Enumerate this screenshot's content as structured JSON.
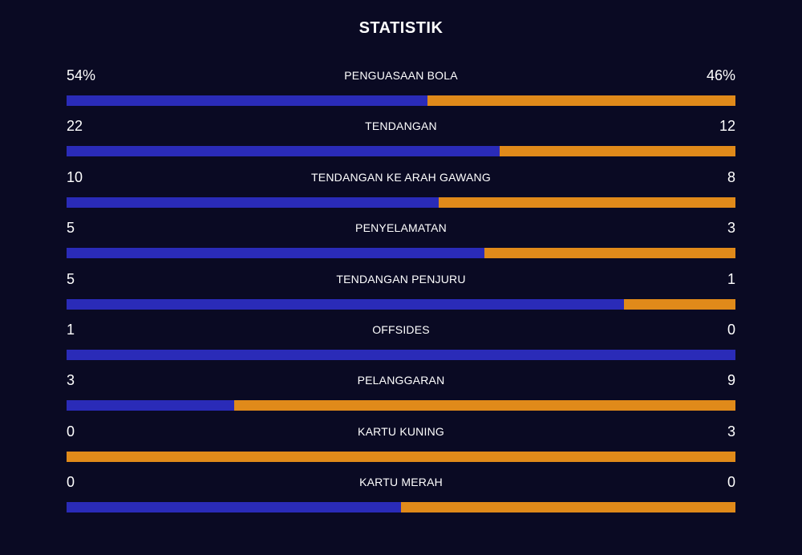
{
  "title": "STATISTIK",
  "colors": {
    "background": "#0a0a23",
    "home": "#2a2bb8",
    "away": "#e08a1a"
  },
  "stats": [
    {
      "label": "PENGUASAAN BOLA",
      "home": "54%",
      "away": "46%",
      "home_share": 0.54
    },
    {
      "label": "TENDANGAN",
      "home": "22",
      "away": "12",
      "home_share": 0.647
    },
    {
      "label": "TENDANGAN KE ARAH GAWANG",
      "home": "10",
      "away": "8",
      "home_share": 0.556
    },
    {
      "label": "PENYELAMATAN",
      "home": "5",
      "away": "3",
      "home_share": 0.625
    },
    {
      "label": "TENDANGAN PENJURU",
      "home": "5",
      "away": "1",
      "home_share": 0.833
    },
    {
      "label": "OFFSIDES",
      "home": "1",
      "away": "0",
      "home_share": 1.0
    },
    {
      "label": "PELANGGARAN",
      "home": "3",
      "away": "9",
      "home_share": 0.25
    },
    {
      "label": "KARTU KUNING",
      "home": "0",
      "away": "3",
      "home_share": 0.0
    },
    {
      "label": "KARTU MERAH",
      "home": "0",
      "away": "0",
      "home_share": 0.5
    }
  ]
}
